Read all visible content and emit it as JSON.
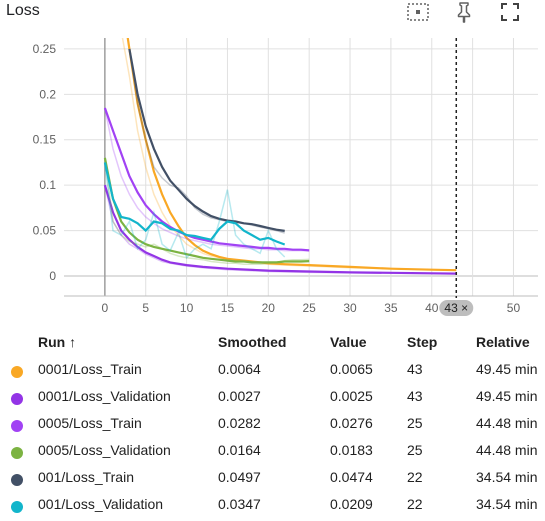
{
  "title": "Loss",
  "icons": {
    "fit": "fit-domain-icon",
    "pin": "pin-icon",
    "fullscreen": "fullscreen-icon"
  },
  "chart_data": {
    "type": "line",
    "xlim": [
      -5,
      53
    ],
    "ylim": [
      -0.022,
      0.262
    ],
    "x_ticks": [
      0,
      5,
      10,
      15,
      20,
      25,
      30,
      35,
      40,
      45,
      50
    ],
    "y_ticks": [
      0,
      0.05,
      0.1,
      0.15,
      0.2,
      0.25
    ],
    "x_tick_labels": [
      "0",
      "5",
      "10",
      "15",
      "20",
      "25",
      "30",
      "35",
      "40",
      "",
      "50"
    ],
    "y_tick_labels": [
      "0",
      "0.05",
      "0.1",
      "0.15",
      "0.2",
      "0.25"
    ],
    "grid": true,
    "hover_step": 43,
    "hover_label": "43 ×",
    "series": [
      {
        "name": "0001/Loss_Train",
        "color": "#f9a825",
        "x": [
          0,
          1,
          2,
          3,
          4,
          5,
          6,
          7,
          8,
          9,
          10,
          11,
          12,
          13,
          14,
          15,
          16,
          17,
          18,
          19,
          20,
          22,
          25,
          30,
          35,
          40,
          43
        ],
        "smoothed": [
          0.5,
          0.4,
          0.31,
          0.25,
          0.19,
          0.15,
          0.115,
          0.09,
          0.07,
          0.055,
          0.042,
          0.034,
          0.028,
          0.024,
          0.021,
          0.019,
          0.018,
          0.017,
          0.016,
          0.015,
          0.014,
          0.013,
          0.012,
          0.01,
          0.008,
          0.007,
          0.0064
        ],
        "raw": [
          0.5,
          0.38,
          0.27,
          0.22,
          0.16,
          0.12,
          0.09,
          0.07,
          0.055,
          0.045,
          0.035,
          0.03,
          0.025,
          0.022,
          0.02,
          0.018,
          0.017,
          0.016,
          0.015,
          0.014,
          0.013,
          0.012,
          0.011,
          0.009,
          0.008,
          0.007,
          0.0065
        ]
      },
      {
        "name": "0001/Loss_Validation",
        "color": "#9334e6",
        "x": [
          0,
          1,
          2,
          3,
          4,
          5,
          6,
          7,
          8,
          10,
          12,
          15,
          20,
          25,
          30,
          35,
          40,
          43
        ],
        "smoothed": [
          0.1,
          0.07,
          0.05,
          0.04,
          0.032,
          0.026,
          0.022,
          0.018,
          0.015,
          0.012,
          0.01,
          0.008,
          0.006,
          0.005,
          0.004,
          0.0035,
          0.003,
          0.0027
        ],
        "raw": [
          0.1,
          0.06,
          0.045,
          0.035,
          0.03,
          0.024,
          0.02,
          0.016,
          0.014,
          0.011,
          0.009,
          0.007,
          0.005,
          0.004,
          0.0035,
          0.003,
          0.0026,
          0.0025
        ]
      },
      {
        "name": "0005/Loss_Train",
        "color": "#a142f4",
        "x": [
          0,
          1,
          2,
          3,
          4,
          5,
          6,
          7,
          8,
          9,
          10,
          11,
          12,
          13,
          14,
          15,
          16,
          17,
          18,
          19,
          20,
          21,
          22,
          23,
          24,
          25
        ],
        "smoothed": [
          0.185,
          0.16,
          0.135,
          0.11,
          0.092,
          0.078,
          0.068,
          0.06,
          0.054,
          0.049,
          0.045,
          0.042,
          0.04,
          0.038,
          0.036,
          0.035,
          0.034,
          0.033,
          0.032,
          0.031,
          0.031,
          0.03,
          0.03,
          0.029,
          0.029,
          0.0282
        ],
        "raw": [
          0.185,
          0.14,
          0.11,
          0.09,
          0.075,
          0.065,
          0.058,
          0.052,
          0.048,
          0.044,
          0.041,
          0.039,
          0.037,
          0.035,
          0.034,
          0.033,
          0.032,
          0.031,
          0.03,
          0.03,
          0.029,
          0.029,
          0.028,
          0.028,
          0.028,
          0.0276
        ]
      },
      {
        "name": "0005/Loss_Validation",
        "color": "#7cb342",
        "x": [
          0,
          1,
          2,
          3,
          4,
          5,
          6,
          7,
          8,
          9,
          10,
          11,
          12,
          13,
          14,
          15,
          16,
          17,
          18,
          19,
          20,
          21,
          22,
          23,
          24,
          25
        ],
        "smoothed": [
          0.13,
          0.085,
          0.06,
          0.048,
          0.04,
          0.035,
          0.032,
          0.03,
          0.028,
          0.026,
          0.024,
          0.022,
          0.02,
          0.019,
          0.018,
          0.017,
          0.016,
          0.016,
          0.015,
          0.015,
          0.015,
          0.015,
          0.016,
          0.016,
          0.016,
          0.0164
        ],
        "raw": [
          0.13,
          0.06,
          0.045,
          0.038,
          0.035,
          0.032,
          0.035,
          0.03,
          0.025,
          0.022,
          0.02,
          0.019,
          0.018,
          0.016,
          0.015,
          0.014,
          0.014,
          0.013,
          0.013,
          0.013,
          0.014,
          0.015,
          0.017,
          0.018,
          0.018,
          0.0183
        ]
      },
      {
        "name": "001/Loss_Train",
        "color": "#425066",
        "x": [
          3,
          4,
          5,
          6,
          7,
          8,
          9,
          10,
          11,
          12,
          13,
          14,
          15,
          16,
          17,
          18,
          19,
          20,
          21,
          22
        ],
        "smoothed": [
          0.25,
          0.2,
          0.165,
          0.14,
          0.12,
          0.105,
          0.095,
          0.085,
          0.077,
          0.071,
          0.066,
          0.063,
          0.061,
          0.06,
          0.058,
          0.057,
          0.055,
          0.053,
          0.051,
          0.0497
        ],
        "raw": [
          0.25,
          0.19,
          0.15,
          0.12,
          0.108,
          0.1,
          0.097,
          0.088,
          0.075,
          0.068,
          0.064,
          0.062,
          0.06,
          0.059,
          0.058,
          0.056,
          0.054,
          0.052,
          0.05,
          0.0474
        ]
      },
      {
        "name": "001/Loss_Validation",
        "color": "#12b5cb",
        "x": [
          0,
          1,
          2,
          3,
          4,
          5,
          6,
          7,
          8,
          9,
          10,
          11,
          12,
          13,
          14,
          15,
          16,
          17,
          18,
          19,
          20,
          21,
          22
        ],
        "smoothed": [
          0.125,
          0.085,
          0.065,
          0.063,
          0.058,
          0.05,
          0.06,
          0.058,
          0.052,
          0.05,
          0.045,
          0.044,
          0.042,
          0.04,
          0.052,
          0.06,
          0.058,
          0.05,
          0.045,
          0.04,
          0.042,
          0.038,
          0.0347
        ],
        "raw": [
          0.125,
          0.05,
          0.045,
          0.06,
          0.03,
          0.04,
          0.07,
          0.035,
          0.028,
          0.048,
          0.02,
          0.03,
          0.035,
          0.03,
          0.06,
          0.095,
          0.045,
          0.035,
          0.03,
          0.025,
          0.05,
          0.03,
          0.0209
        ]
      }
    ]
  },
  "table": {
    "headers": {
      "run": "Run ↑",
      "smoothed": "Smoothed",
      "value": "Value",
      "step": "Step",
      "relative": "Relative"
    },
    "rows": [
      {
        "run": "0001/Loss_Train",
        "smoothed": "0.0064",
        "value": "0.0065",
        "step": "43",
        "relative": "49.45 min",
        "color": "#f9a825"
      },
      {
        "run": "0001/Loss_Validation",
        "smoothed": "0.0027",
        "value": "0.0025",
        "step": "43",
        "relative": "49.45 min",
        "color": "#9334e6"
      },
      {
        "run": "0005/Loss_Train",
        "smoothed": "0.0282",
        "value": "0.0276",
        "step": "25",
        "relative": "44.48 min",
        "color": "#a142f4"
      },
      {
        "run": "0005/Loss_Validation",
        "smoothed": "0.0164",
        "value": "0.0183",
        "step": "25",
        "relative": "44.48 min",
        "color": "#7cb342"
      },
      {
        "run": "001/Loss_Train",
        "smoothed": "0.0497",
        "value": "0.0474",
        "step": "22",
        "relative": "34.54 min",
        "color": "#425066"
      },
      {
        "run": "001/Loss_Validation",
        "smoothed": "0.0347",
        "value": "0.0209",
        "step": "22",
        "relative": "34.54 min",
        "color": "#12b5cb"
      }
    ]
  }
}
